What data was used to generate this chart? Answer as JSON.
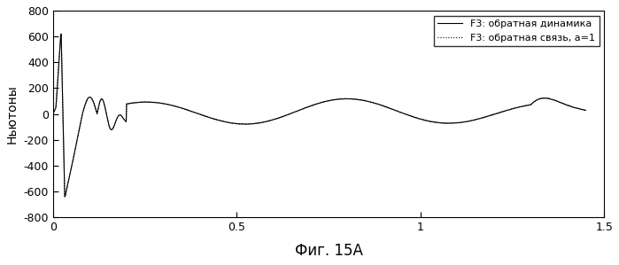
{
  "title": "Фиг. 15А",
  "ylabel": "Ньютоны",
  "xlabel": "",
  "xlim": [
    0,
    1.5
  ],
  "ylim": [
    -800,
    800
  ],
  "yticks": [
    -800,
    -600,
    -400,
    -200,
    0,
    200,
    400,
    600,
    800
  ],
  "xticks": [
    0,
    0.5,
    1.0,
    1.5
  ],
  "legend1": "F3: обратная связь, а=1",
  "legend2": "F3: обратная динамика",
  "bg_color": "#ffffff",
  "line_color": "#000000"
}
